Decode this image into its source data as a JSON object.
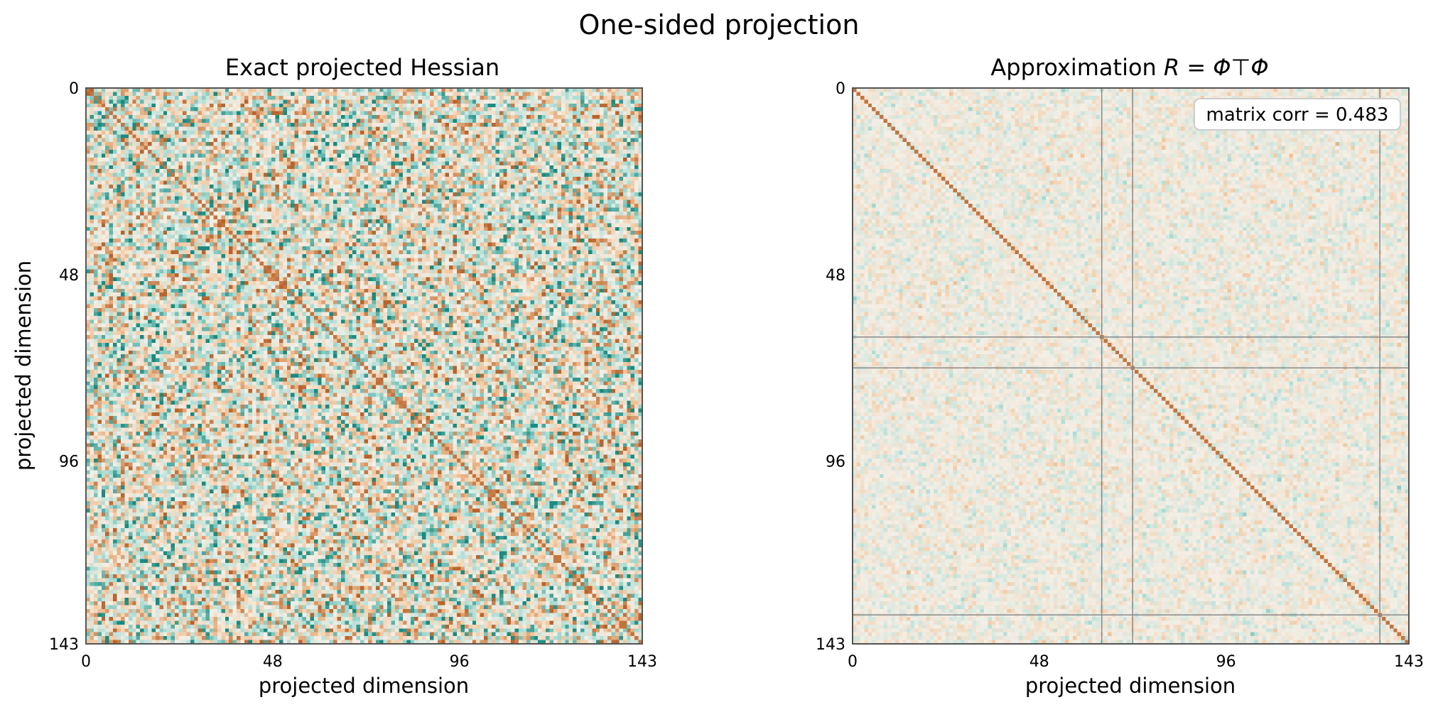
{
  "figure": {
    "suptitle": "One-sided projection"
  },
  "colors": {
    "negative_strong": "#1b8a80",
    "negative_light": "#a6dbd4",
    "neutral": "#f4efe6",
    "positive_light": "#f0c49a",
    "positive_strong": "#b8642c",
    "frame": "#555555"
  },
  "chart_data": [
    {
      "type": "heatmap",
      "title": "Exact projected Hessian",
      "xlabel": "projected dimension",
      "ylabel": "projected dimension",
      "size": 144,
      "xlim": [
        0,
        143
      ],
      "ylim": [
        143,
        0
      ],
      "xticks": [
        0,
        48,
        96,
        143
      ],
      "yticks": [
        0,
        48,
        96,
        143
      ],
      "xtick_labels": [
        "0",
        "48",
        "96",
        "143"
      ],
      "ytick_labels": [
        "0",
        "48",
        "96",
        "143"
      ],
      "colormap": "diverging teal-to-orange",
      "diagonal": "strong positive",
      "off_diagonal": "dense random positive/negative noise, high magnitude",
      "grid": false
    },
    {
      "type": "heatmap",
      "title_prefix": "Approximation ",
      "title_math": "R = Φ⊤Φ",
      "xlabel": "projected dimension",
      "ylabel": "",
      "size": 144,
      "xlim": [
        0,
        143
      ],
      "ylim": [
        143,
        0
      ],
      "xticks": [
        0,
        48,
        96,
        143
      ],
      "yticks": [
        0,
        48,
        96,
        143
      ],
      "xtick_labels": [
        "0",
        "48",
        "96",
        "143"
      ],
      "ytick_labels": [
        "0",
        "48",
        "96",
        "143"
      ],
      "colormap": "diverging teal-to-orange",
      "diagonal": "strong positive",
      "off_diagonal": "weak random noise, low magnitude",
      "highlighted_rows": [
        64,
        72,
        136
      ],
      "highlighted_cols": [
        64,
        72,
        136
      ],
      "annotation": "matrix corr = 0.483",
      "annotation_position": "top-right",
      "grid": false
    }
  ]
}
